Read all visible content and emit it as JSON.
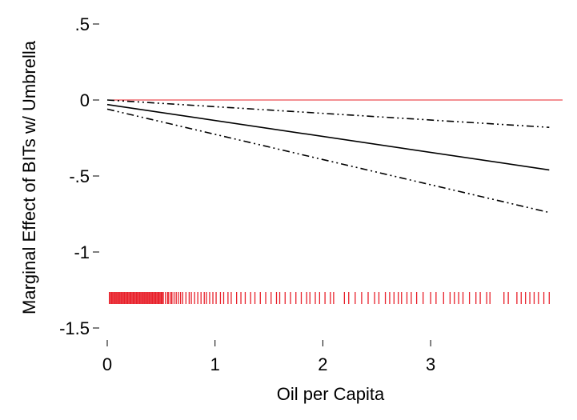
{
  "chart_data": {
    "type": "line",
    "title": "",
    "xlabel": "Oil per Capita",
    "ylabel": "Marginal Effect of BITs w/ Umbrella",
    "xlim": [
      0,
      4.12
    ],
    "ylim": [
      -1.5,
      0.5
    ],
    "x_ticks": [
      {
        "value": 0,
        "label": "0"
      },
      {
        "value": 1,
        "label": "1"
      },
      {
        "value": 2,
        "label": "2"
      },
      {
        "value": 3,
        "label": "3"
      }
    ],
    "y_ticks": [
      {
        "value": 0.5,
        "label": ".5"
      },
      {
        "value": 0,
        "label": "0"
      },
      {
        "value": -0.5,
        "label": "-.5"
      },
      {
        "value": -1,
        "label": "-1"
      },
      {
        "value": -1.5,
        "label": "-1.5"
      }
    ],
    "reference_line": {
      "y": 0,
      "color": "#e8202a"
    },
    "series": [
      {
        "style": "solid",
        "x": [
          0,
          4.1
        ],
        "y": [
          -0.03,
          -0.46
        ]
      },
      {
        "style": "dash-dot",
        "x": [
          0,
          4.1
        ],
        "y": [
          0.0,
          -0.18
        ]
      },
      {
        "style": "dash-dot",
        "x": [
          0,
          4.1
        ],
        "y": [
          -0.06,
          -0.74
        ]
      }
    ],
    "rug": {
      "y": -1.3,
      "color": "#e8202a",
      "x": [
        0.02,
        0.03,
        0.04,
        0.05,
        0.06,
        0.07,
        0.08,
        0.09,
        0.1,
        0.11,
        0.12,
        0.13,
        0.14,
        0.15,
        0.16,
        0.17,
        0.18,
        0.19,
        0.2,
        0.21,
        0.22,
        0.23,
        0.24,
        0.25,
        0.26,
        0.27,
        0.28,
        0.29,
        0.3,
        0.31,
        0.32,
        0.33,
        0.34,
        0.35,
        0.36,
        0.37,
        0.38,
        0.39,
        0.4,
        0.41,
        0.42,
        0.43,
        0.44,
        0.45,
        0.46,
        0.47,
        0.48,
        0.49,
        0.5,
        0.51,
        0.52,
        0.54,
        0.56,
        0.57,
        0.59,
        0.6,
        0.62,
        0.64,
        0.66,
        0.68,
        0.7,
        0.73,
        0.76,
        0.78,
        0.81,
        0.84,
        0.87,
        0.9,
        0.92,
        0.95,
        0.98,
        1.01,
        1.05,
        1.08,
        1.12,
        1.15,
        1.2,
        1.24,
        1.28,
        1.33,
        1.37,
        1.42,
        1.47,
        1.52,
        1.57,
        1.6,
        1.65,
        1.7,
        1.75,
        1.8,
        1.85,
        1.88,
        1.93,
        1.97,
        2.02,
        2.07,
        2.1,
        2.2,
        2.24,
        2.3,
        2.36,
        2.42,
        2.48,
        2.52,
        2.58,
        2.62,
        2.66,
        2.7,
        2.73,
        2.78,
        2.82,
        2.87,
        2.93,
        3.0,
        3.05,
        3.12,
        3.18,
        3.22,
        3.26,
        3.3,
        3.36,
        3.42,
        3.46,
        3.52,
        3.55,
        3.68,
        3.72,
        3.8,
        3.84,
        3.88,
        3.92,
        3.96,
        4.0,
        4.05,
        4.1
      ]
    }
  }
}
